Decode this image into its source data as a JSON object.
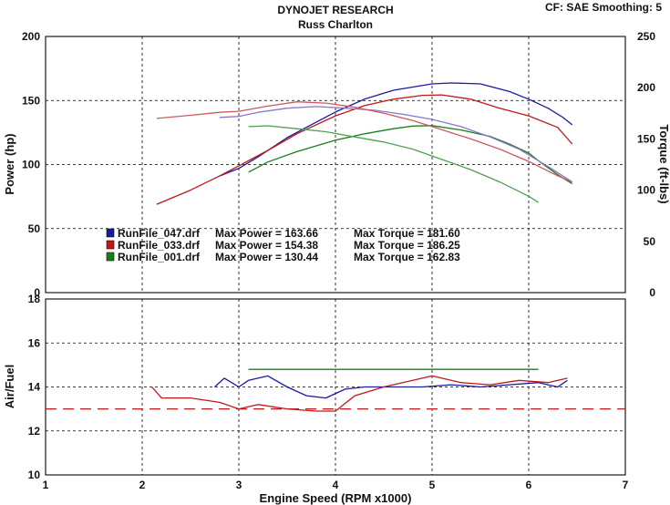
{
  "header": {
    "title": "DYNOJET RESEARCH",
    "subtitle": "Russ Charlton",
    "settings": "CF: SAE  Smoothing: 5"
  },
  "chart_data": [
    {
      "type": "line",
      "title": "DYNOJET RESEARCH",
      "subtitle": "Russ Charlton",
      "ylabel": "Power (hp)",
      "y2label": "Torque (ft-lbs)",
      "xlim": [
        1,
        7
      ],
      "ylim": [
        0,
        200
      ],
      "y2lim": [
        0,
        250
      ],
      "yticks": [
        "0",
        "50",
        "100",
        "150",
        "200"
      ],
      "y2ticks": [
        "0",
        "50",
        "100",
        "150",
        "200",
        "250"
      ],
      "grid": true,
      "legend": {
        "position": "lower-left",
        "entries": [
          {
            "file": "RunFile_047.drf",
            "max_power_label": "Max Power = 163.66",
            "max_torque_label": "Max Torque = 181.60",
            "color": "#1a1aa0"
          },
          {
            "file": "RunFile_033.drf",
            "max_power_label": "Max Power = 154.38",
            "max_torque_label": "Max Torque = 186.25",
            "color": "#c01818"
          },
          {
            "file": "RunFile_001.drf",
            "max_power_label": "Max Power = 130.44",
            "max_torque_label": "Max Torque = 162.83",
            "color": "#188018"
          }
        ]
      },
      "series": [
        {
          "name": "RunFile_047.drf",
          "measure": "Power (hp)",
          "axis": "left",
          "color": "#1a1aa0",
          "x": [
            2.8,
            3.0,
            3.2,
            3.5,
            3.8,
            4.0,
            4.3,
            4.6,
            5.0,
            5.2,
            5.5,
            5.8,
            6.0,
            6.2,
            6.35,
            6.45
          ],
          "y": [
            91,
            97,
            106,
            121,
            133,
            141,
            151,
            158,
            163,
            163.7,
            163,
            157,
            151,
            144,
            137,
            131
          ]
        },
        {
          "name": "RunFile_033.drf",
          "measure": "Power (hp)",
          "axis": "left",
          "color": "#c01818",
          "x": [
            2.15,
            2.5,
            2.8,
            3.0,
            3.3,
            3.6,
            4.0,
            4.3,
            4.6,
            4.9,
            5.1,
            5.4,
            5.7,
            6.0,
            6.3,
            6.45
          ],
          "y": [
            69,
            80,
            91,
            99,
            111,
            124,
            138,
            146,
            151,
            154,
            154.4,
            151,
            144,
            138,
            129,
            116
          ]
        },
        {
          "name": "RunFile_001.drf",
          "measure": "Power (hp)",
          "axis": "left",
          "color": "#188018",
          "x": [
            3.1,
            3.3,
            3.6,
            4.0,
            4.3,
            4.6,
            4.8,
            5.0,
            5.3,
            5.6,
            5.8,
            6.0,
            6.1,
            6.3,
            6.45
          ],
          "y": [
            94,
            102,
            110,
            119,
            124,
            128,
            130,
            130.4,
            127,
            122,
            116,
            109,
            103,
            92,
            85
          ]
        },
        {
          "name": "RunFile_047.drf",
          "measure": "Torque (ft-lbs)",
          "axis": "right",
          "color": "#8878c8",
          "x": [
            2.8,
            3.0,
            3.2,
            3.5,
            3.8,
            4.1,
            4.4,
            4.7,
            5.0,
            5.3,
            5.6,
            5.9,
            6.2,
            6.45
          ],
          "y": [
            171,
            172,
            176,
            180,
            181.6,
            180,
            178,
            174,
            169,
            162,
            152,
            140,
            123,
            108
          ]
        },
        {
          "name": "RunFile_033.drf",
          "measure": "Torque (ft-lbs)",
          "axis": "right",
          "color": "#d05860",
          "x": [
            2.15,
            2.5,
            2.8,
            3.0,
            3.3,
            3.6,
            3.9,
            4.2,
            4.5,
            4.8,
            5.1,
            5.4,
            5.7,
            6.0,
            6.3,
            6.45
          ],
          "y": [
            170,
            173,
            176,
            177,
            182,
            186.25,
            185,
            181,
            175,
            168,
            159,
            150,
            140,
            128,
            114,
            108
          ]
        },
        {
          "name": "RunFile_001.drf",
          "measure": "Torque (ft-lbs)",
          "axis": "right",
          "color": "#50a050",
          "x": [
            3.1,
            3.3,
            3.6,
            3.9,
            4.2,
            4.5,
            4.8,
            5.1,
            5.4,
            5.7,
            6.0,
            6.1
          ],
          "y": [
            162,
            162.8,
            160,
            157,
            152,
            147,
            140,
            130,
            120,
            108,
            94,
            88
          ]
        }
      ]
    },
    {
      "type": "line",
      "xlabel": "Engine Speed (RPM x1000)",
      "ylabel": "Air/Fuel",
      "xlim": [
        1,
        7
      ],
      "ylim": [
        10,
        18
      ],
      "xticks": [
        "1",
        "2",
        "3",
        "4",
        "5",
        "6",
        "7"
      ],
      "yticks": [
        "10",
        "12",
        "14",
        "16",
        "18"
      ],
      "grid": true,
      "reference_line": {
        "y": 13,
        "style": "dashed",
        "color": "#c01818"
      },
      "series": [
        {
          "name": "RunFile_047.drf",
          "color": "#1a1aa0",
          "x": [
            2.75,
            2.85,
            3.0,
            3.1,
            3.3,
            3.5,
            3.7,
            3.9,
            4.1,
            4.3,
            4.6,
            4.9,
            5.2,
            5.5,
            5.8,
            6.1,
            6.3,
            6.4
          ],
          "y": [
            14.0,
            14.4,
            14.0,
            14.3,
            14.5,
            14.0,
            13.6,
            13.5,
            13.9,
            14.0,
            14.0,
            14.0,
            14.1,
            14.0,
            14.1,
            14.2,
            14.0,
            14.3
          ]
        },
        {
          "name": "RunFile_033.drf",
          "color": "#c01818",
          "x": [
            2.1,
            2.2,
            2.5,
            2.8,
            3.0,
            3.2,
            3.5,
            3.8,
            4.0,
            4.2,
            4.5,
            4.8,
            5.0,
            5.3,
            5.6,
            5.9,
            6.2,
            6.4
          ],
          "y": [
            14.0,
            13.5,
            13.5,
            13.3,
            13.0,
            13.2,
            13.0,
            12.9,
            12.9,
            13.6,
            14.0,
            14.3,
            14.5,
            14.2,
            14.1,
            14.3,
            14.2,
            14.4
          ]
        },
        {
          "name": "RunFile_001.drf",
          "color": "#188018",
          "x": [
            3.1,
            3.5,
            4.0,
            4.5,
            5.0,
            5.5,
            6.0,
            6.1
          ],
          "y": [
            14.8,
            14.8,
            14.8,
            14.8,
            14.8,
            14.8,
            14.8,
            14.8
          ]
        }
      ]
    }
  ]
}
